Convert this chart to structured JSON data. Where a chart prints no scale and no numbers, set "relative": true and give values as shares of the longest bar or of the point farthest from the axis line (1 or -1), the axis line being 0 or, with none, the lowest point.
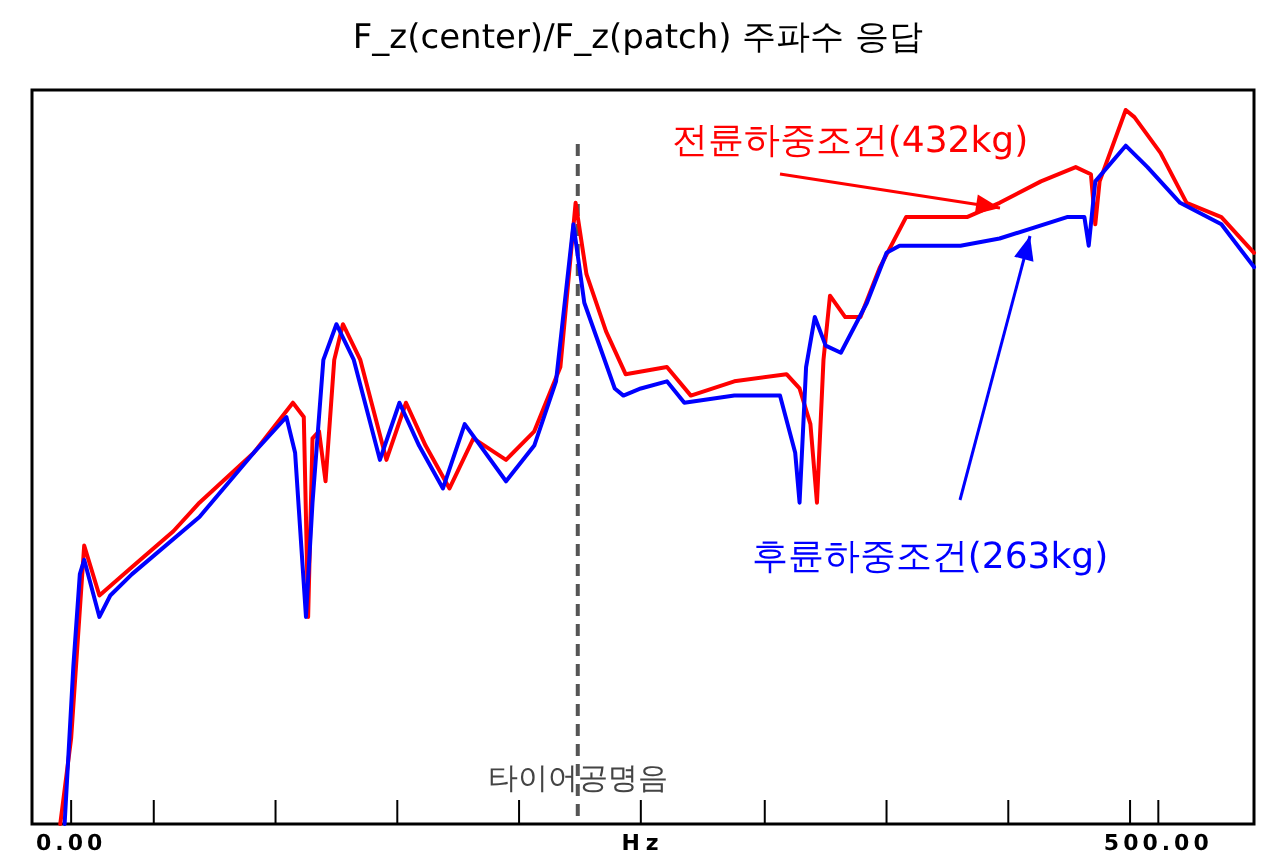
{
  "chart_data": {
    "type": "line",
    "title": "F_z(center)/F_z(patch) 주파수 응답",
    "xlabel": "Hz",
    "relative": true,
    "xlim": [
      -18,
      544
    ],
    "xticks": [
      {
        "value": 0,
        "label": "0.00"
      },
      {
        "value": 38,
        "label": null
      },
      {
        "value": 94,
        "label": null
      },
      {
        "value": 150,
        "label": null
      },
      {
        "value": 206,
        "label": null
      },
      {
        "value": 262,
        "label": null
      },
      {
        "value": 319,
        "label": null
      },
      {
        "value": 375,
        "label": null
      },
      {
        "value": 431,
        "label": null
      },
      {
        "value": 487,
        "label": null
      },
      {
        "value": 500,
        "label": "500.00"
      }
    ],
    "ref_lines": [
      {
        "axis": "x",
        "value": 233,
        "label": "타이어공명음",
        "color": "#555555",
        "line_style": "dashed"
      }
    ],
    "grid": false,
    "legend": false,
    "marker": "none",
    "line_style": "solid",
    "series": [
      {
        "name": "전륜하중조건(432kg)",
        "color": "#ff0000",
        "x": [
          -5,
          0,
          6,
          13,
          28,
          47,
          59,
          84,
          102,
          107,
          109,
          111,
          114,
          117,
          121,
          125,
          133,
          145,
          154,
          163,
          174,
          185,
          200,
          213,
          225,
          232,
          237,
          246,
          255,
          274,
          285,
          305,
          329,
          335,
          340,
          343,
          346,
          349,
          356,
          363,
          372,
          384,
          412,
          427,
          446,
          462,
          469,
          471,
          473,
          485,
          489,
          501,
          513,
          529,
          544
        ],
        "values": [
          0,
          0.12,
          0.39,
          0.32,
          0.36,
          0.41,
          0.45,
          0.52,
          0.59,
          0.57,
          0.29,
          0.54,
          0.55,
          0.48,
          0.65,
          0.7,
          0.65,
          0.51,
          0.59,
          0.53,
          0.47,
          0.54,
          0.51,
          0.55,
          0.64,
          0.87,
          0.77,
          0.69,
          0.63,
          0.64,
          0.6,
          0.62,
          0.63,
          0.61,
          0.56,
          0.45,
          0.65,
          0.74,
          0.71,
          0.71,
          0.78,
          0.85,
          0.85,
          0.87,
          0.9,
          0.92,
          0.91,
          0.84,
          0.9,
          1.0,
          0.99,
          0.94,
          0.87,
          0.85,
          0.8
        ]
      },
      {
        "name": "후륜하중조건(263kg)",
        "color": "#0000ff",
        "x": [
          -3,
          1,
          4,
          6,
          13,
          18,
          28,
          59,
          84,
          99,
          103,
          108,
          111,
          116,
          122,
          130,
          142,
          151,
          160,
          171,
          181,
          200,
          213,
          223,
          231,
          236,
          250,
          254,
          262,
          274,
          282,
          305,
          326,
          333,
          335,
          338,
          342,
          347,
          354,
          366,
          375,
          381,
          409,
          427,
          458,
          466,
          468,
          471,
          485,
          495,
          510,
          529,
          544
        ],
        "values": [
          0,
          0.22,
          0.35,
          0.37,
          0.29,
          0.32,
          0.35,
          0.43,
          0.52,
          0.57,
          0.52,
          0.29,
          0.45,
          0.65,
          0.7,
          0.65,
          0.51,
          0.59,
          0.53,
          0.47,
          0.56,
          0.48,
          0.53,
          0.62,
          0.84,
          0.73,
          0.61,
          0.6,
          0.61,
          0.62,
          0.59,
          0.6,
          0.6,
          0.52,
          0.45,
          0.64,
          0.71,
          0.67,
          0.66,
          0.73,
          0.8,
          0.81,
          0.81,
          0.82,
          0.85,
          0.85,
          0.81,
          0.9,
          0.95,
          0.92,
          0.87,
          0.84,
          0.78
        ]
      }
    ]
  }
}
